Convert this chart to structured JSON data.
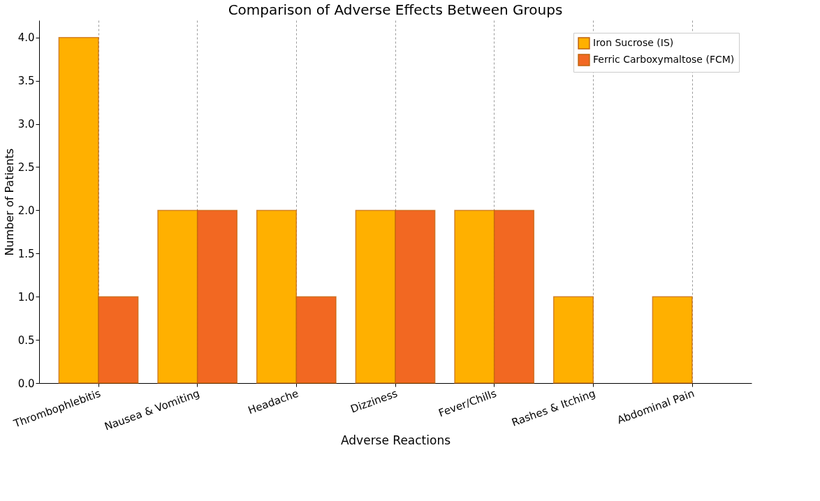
{
  "chart_data": {
    "type": "bar",
    "title": "Comparison of Adverse Effects Between Groups",
    "xlabel": "Adverse Reactions",
    "ylabel": "Number of Patients",
    "categories": [
      "Thrombophlebitis",
      "Nausea & Vomiting",
      "Headache",
      "Dizziness",
      "Fever/Chills",
      "Rashes & Itching",
      "Abdominal Pain"
    ],
    "series": [
      {
        "name": "Iron Sucrose (IS)",
        "color": "#ffb000",
        "values": [
          4,
          2,
          2,
          2,
          2,
          1,
          1
        ]
      },
      {
        "name": "Ferric Carboxymaltose (FCM)",
        "color": "#f26822",
        "values": [
          1,
          2,
          1,
          2,
          2,
          null,
          null
        ]
      }
    ],
    "ylim": [
      0,
      4.2
    ],
    "yticks": [
      {
        "value": 0,
        "label": "0.0"
      },
      0.5,
      {
        "value": 1,
        "label": "1.0"
      },
      1.5,
      {
        "value": 2,
        "label": "2.0"
      },
      2.5,
      {
        "value": 3,
        "label": "3.0"
      },
      3.5,
      {
        "value": 4,
        "label": "4.0"
      }
    ],
    "grid": "x",
    "legend": "top right"
  }
}
